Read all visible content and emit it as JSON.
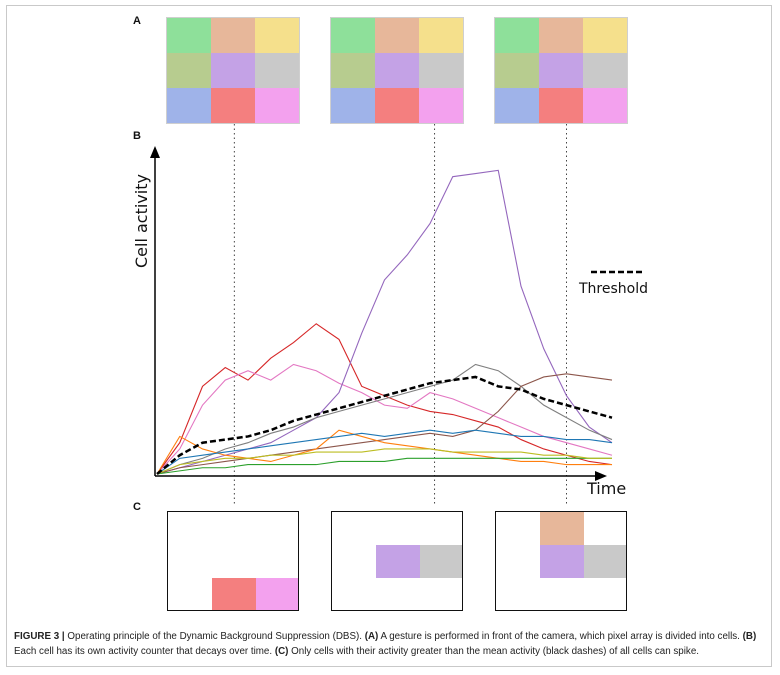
{
  "panel_labels": {
    "a": "A",
    "b": "B",
    "c": "C"
  },
  "colors": {
    "green": "#8ee09a",
    "tan": "#e7b79a",
    "yellow": "#f5e08c",
    "olive": "#b7cc8f",
    "purple": "#c4a2e6",
    "grey": "#c9c9c9",
    "blue": "#9fb3e9",
    "red": "#f47f7f",
    "pink": "#f3a1ee"
  },
  "chart_data": {
    "type": "line",
    "ylabel": "Cell activity",
    "xlabel": "Time",
    "legend": {
      "label": "Threshold",
      "style": "black dashed",
      "position": "right"
    },
    "x": [
      0,
      5,
      10,
      15,
      20,
      25,
      30,
      35,
      40,
      45,
      50,
      55,
      60,
      65,
      70,
      75,
      80,
      85,
      90,
      95,
      100
    ],
    "series": [
      {
        "color": "#d62728",
        "values": [
          0,
          10,
          28,
          34,
          30,
          37,
          42,
          48,
          43,
          28,
          25,
          22,
          20,
          19,
          17,
          15,
          11,
          8,
          6,
          4,
          3
        ]
      },
      {
        "color": "#e377c2",
        "values": [
          0,
          8,
          22,
          30,
          33,
          30,
          35,
          33,
          29,
          26,
          22,
          21,
          26,
          24,
          21,
          18,
          15,
          12,
          10,
          8,
          6
        ]
      },
      {
        "color": "#9467bd",
        "values": [
          0,
          2,
          4,
          6,
          8,
          10,
          14,
          18,
          26,
          45,
          62,
          70,
          80,
          95,
          96,
          97,
          60,
          40,
          25,
          15,
          10
        ]
      },
      {
        "color": "#7f7f7f",
        "values": [
          0,
          3,
          5,
          8,
          10,
          13,
          15,
          18,
          20,
          22,
          24,
          26,
          28,
          30,
          35,
          33,
          28,
          22,
          18,
          14,
          11
        ]
      },
      {
        "color": "#8c564b",
        "values": [
          0,
          2,
          3,
          4,
          5,
          6,
          7,
          8,
          9,
          10,
          11,
          12,
          13,
          12,
          14,
          20,
          28,
          31,
          32,
          31,
          30
        ]
      },
      {
        "color": "#ff7f0e",
        "values": [
          0,
          12,
          8,
          6,
          5,
          4,
          6,
          8,
          14,
          12,
          10,
          9,
          8,
          7,
          6,
          5,
          4,
          4,
          3,
          3,
          3
        ]
      },
      {
        "color": "#1f77b4",
        "values": [
          0,
          5,
          6,
          7,
          8,
          9,
          10,
          11,
          12,
          13,
          12,
          13,
          14,
          13,
          14,
          13,
          12,
          12,
          11,
          11,
          10
        ]
      },
      {
        "color": "#2ca02c",
        "values": [
          0,
          1,
          2,
          2,
          3,
          3,
          3,
          3,
          4,
          4,
          4,
          5,
          5,
          5,
          5,
          5,
          5,
          5,
          5,
          5,
          5
        ]
      },
      {
        "color": "#bcbd22",
        "values": [
          0,
          3,
          4,
          5,
          5,
          6,
          6,
          7,
          7,
          7,
          8,
          8,
          8,
          7,
          7,
          7,
          7,
          6,
          6,
          5,
          5
        ]
      },
      {
        "color": "#000000",
        "dashed": true,
        "values": [
          0,
          6,
          10,
          11,
          12,
          14,
          17,
          19,
          21,
          23,
          25,
          27,
          29,
          30,
          31,
          28,
          27,
          24,
          22,
          20,
          18
        ]
      }
    ],
    "ylim": [
      0,
      100
    ],
    "markers_x": [
      17,
      61,
      90
    ]
  },
  "caption": {
    "figure": "FIGURE 3 |",
    "title": " Operating principle of the Dynamic Background Suppression (DBS). ",
    "a_label": "(A)",
    "a_text": " A gesture is performed in front of the camera, which pixel array is divided into cells. ",
    "b_label": "(B)",
    "b_text": " Each cell has its own activity counter that decays over time. ",
    "c_label": "(C)",
    "c_text": " Only cells with their activity greater than the mean activity (black dashes) of all cells can spike."
  }
}
